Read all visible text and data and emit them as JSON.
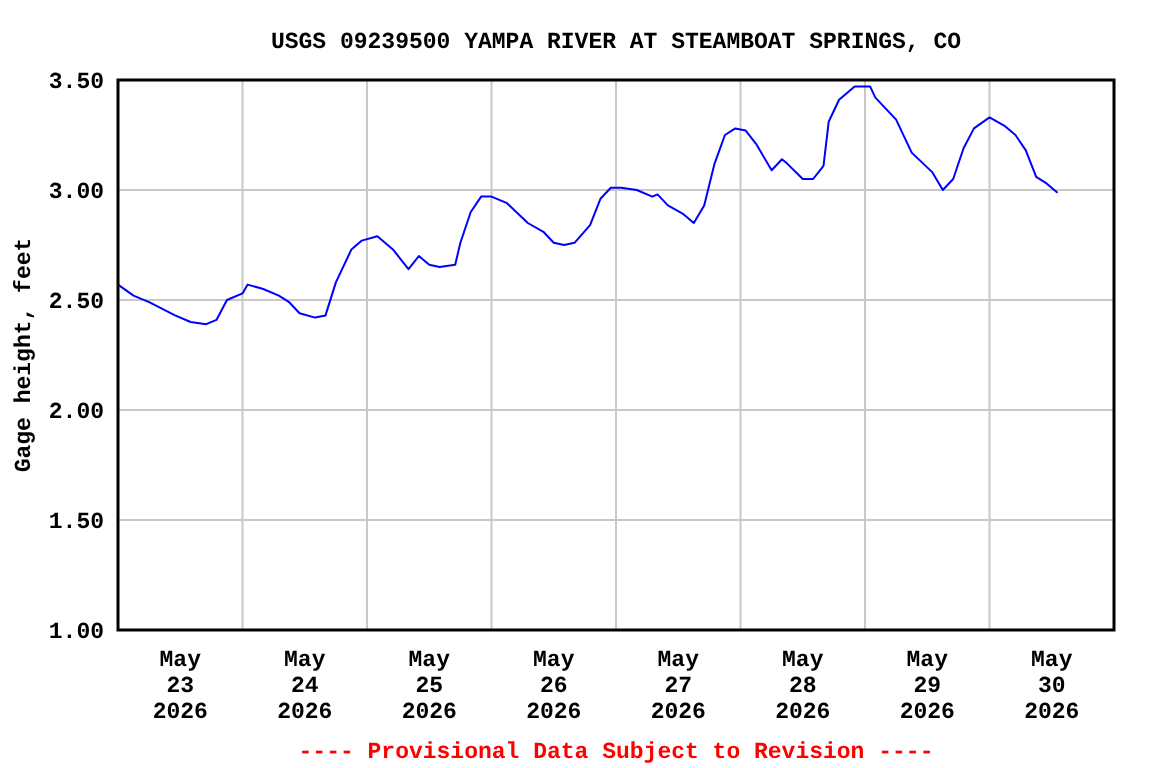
{
  "chart_data": {
    "type": "line",
    "title": "USGS 09239500 YAMPA RIVER AT STEAMBOAT SPRINGS, CO",
    "ylabel": "Gage height, feet",
    "annotations": [
      "---- Provisional Data Subject to Revision ----"
    ],
    "x": [
      "2026-05-23T00:00",
      "2026-05-23T03:00",
      "2026-05-23T06:00",
      "2026-05-23T11:00",
      "2026-05-23T14:00",
      "2026-05-23T17:00",
      "2026-05-23T19:00",
      "2026-05-23T21:00",
      "2026-05-24T00:00",
      "2026-05-24T01:00",
      "2026-05-24T04:00",
      "2026-05-24T07:00",
      "2026-05-24T09:00",
      "2026-05-24T11:00",
      "2026-05-24T14:00",
      "2026-05-24T16:00",
      "2026-05-24T18:00",
      "2026-05-24T21:00",
      "2026-05-24T23:00",
      "2026-05-25T02:00",
      "2026-05-25T05:00",
      "2026-05-25T07:00",
      "2026-05-25T08:00",
      "2026-05-25T10:00",
      "2026-05-25T12:00",
      "2026-05-25T14:00",
      "2026-05-25T17:00",
      "2026-05-25T18:00",
      "2026-05-25T20:00",
      "2026-05-25T22:00",
      "2026-05-26T00:00",
      "2026-05-26T03:00",
      "2026-05-26T07:00",
      "2026-05-26T10:00",
      "2026-05-26T12:00",
      "2026-05-26T14:00",
      "2026-05-26T16:00",
      "2026-05-26T19:00",
      "2026-05-26T21:00",
      "2026-05-26T23:00",
      "2026-05-27T01:00",
      "2026-05-27T04:00",
      "2026-05-27T07:00",
      "2026-05-27T08:00",
      "2026-05-27T10:00",
      "2026-05-27T13:00",
      "2026-05-27T15:00",
      "2026-05-27T17:00",
      "2026-05-27T19:00",
      "2026-05-27T21:00",
      "2026-05-27T23:00",
      "2026-05-28T01:00",
      "2026-05-28T03:00",
      "2026-05-28T06:00",
      "2026-05-28T08:00",
      "2026-05-28T09:00",
      "2026-05-28T12:00",
      "2026-05-28T14:00",
      "2026-05-28T16:00",
      "2026-05-28T17:00",
      "2026-05-28T19:00",
      "2026-05-28T22:00",
      "2026-05-29T01:00",
      "2026-05-29T02:00",
      "2026-05-29T06:00",
      "2026-05-29T09:00",
      "2026-05-29T13:00",
      "2026-05-29T15:00",
      "2026-05-29T17:00",
      "2026-05-29T19:00",
      "2026-05-29T21:00",
      "2026-05-30T00:00",
      "2026-05-30T03:00",
      "2026-05-30T05:00",
      "2026-05-30T07:00",
      "2026-05-30T09:00",
      "2026-05-30T11:00",
      "2026-05-30T13:00"
    ],
    "series": [
      {
        "color": "#0000ff",
        "values": [
          2.57,
          2.52,
          2.49,
          2.43,
          2.4,
          2.39,
          2.41,
          2.5,
          2.53,
          2.57,
          2.55,
          2.52,
          2.49,
          2.44,
          2.42,
          2.43,
          2.58,
          2.73,
          2.77,
          2.79,
          2.73,
          2.67,
          2.64,
          2.7,
          2.66,
          2.65,
          2.66,
          2.76,
          2.9,
          2.97,
          2.97,
          2.94,
          2.85,
          2.81,
          2.76,
          2.75,
          2.76,
          2.84,
          2.96,
          3.01,
          3.01,
          3.0,
          2.97,
          2.98,
          2.93,
          2.89,
          2.85,
          2.93,
          3.12,
          3.25,
          3.28,
          3.27,
          3.21,
          3.09,
          3.14,
          3.12,
          3.05,
          3.05,
          3.11,
          3.31,
          3.41,
          3.47,
          3.47,
          3.42,
          3.32,
          3.17,
          3.08,
          3.0,
          3.05,
          3.19,
          3.28,
          3.33,
          3.29,
          3.25,
          3.18,
          3.06,
          3.03,
          2.99
        ]
      }
    ],
    "xlim": [
      "2026-05-23T00:00",
      "2026-05-31T00:00"
    ],
    "xticks": [
      {
        "value": "2026-05-23T12:00",
        "label": "May\n23\n2026"
      },
      {
        "value": "2026-05-24T12:00",
        "label": "May\n24\n2026"
      },
      {
        "value": "2026-05-25T12:00",
        "label": "May\n25\n2026"
      },
      {
        "value": "2026-05-26T12:00",
        "label": "May\n26\n2026"
      },
      {
        "value": "2026-05-27T12:00",
        "label": "May\n27\n2026"
      },
      {
        "value": "2026-05-28T12:00",
        "label": "May\n28\n2026"
      },
      {
        "value": "2026-05-29T12:00",
        "label": "May\n29\n2026"
      },
      {
        "value": "2026-05-30T12:00",
        "label": "May\n30\n2026"
      },
      {
        "value": "2026-05-24T00:00",
        "label": null
      },
      {
        "value": "2026-05-25T00:00",
        "label": null
      },
      {
        "value": "2026-05-26T00:00",
        "label": null
      },
      {
        "value": "2026-05-27T00:00",
        "label": null
      },
      {
        "value": "2026-05-28T00:00",
        "label": null
      },
      {
        "value": "2026-05-29T00:00",
        "label": null
      },
      {
        "value": "2026-05-30T00:00",
        "label": null
      }
    ],
    "ylim": [
      1,
      3.5
    ],
    "yticks": [
      {
        "value": 1,
        "label": "1.00"
      },
      {
        "value": 1.5,
        "label": "1.50"
      },
      {
        "value": 2,
        "label": "2.00"
      },
      {
        "value": 2.5,
        "label": "2.50"
      },
      {
        "value": 3,
        "label": "3.00"
      },
      {
        "value": 3.5,
        "label": "3.50"
      }
    ],
    "grid": true,
    "marker": "none",
    "line_style": "solid"
  }
}
